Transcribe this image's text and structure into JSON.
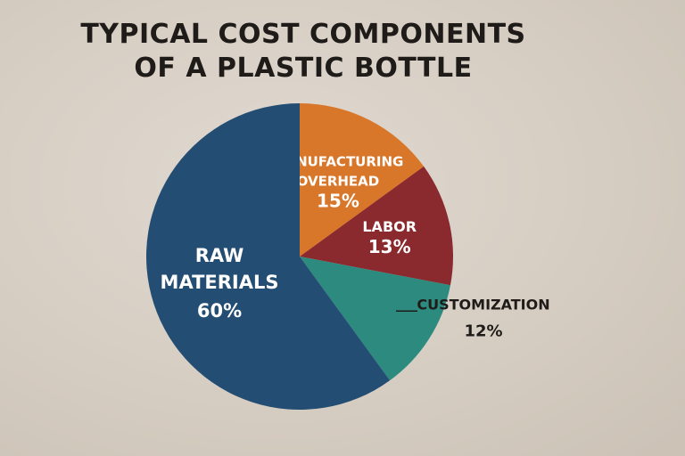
{
  "chart_data": {
    "type": "pie",
    "title_lines": [
      "TYPICAL COST COMPONENTS",
      "OF A PLASTIC BOTTLE"
    ],
    "start_angle_deg": 0,
    "direction": "clockwise",
    "slices": [
      {
        "name_lines": [
          "MANUFACTURING",
          "OVERHEAD"
        ],
        "value": 15,
        "value_label": "15%",
        "color": "#d8772a",
        "label_position": "inside"
      },
      {
        "name_lines": [
          "LABOR"
        ],
        "value": 13,
        "value_label": "13%",
        "color": "#8a2a2e",
        "label_position": "inside"
      },
      {
        "name_lines": [
          "CUSTOMIZATION"
        ],
        "value": 12,
        "value_label": "12%",
        "color": "#2c8a7e",
        "label_position": "outside"
      },
      {
        "name_lines": [
          "RAW",
          "MATERIALS"
        ],
        "value": 60,
        "value_label": "60%",
        "color": "#234d73",
        "label_position": "inside"
      }
    ]
  }
}
